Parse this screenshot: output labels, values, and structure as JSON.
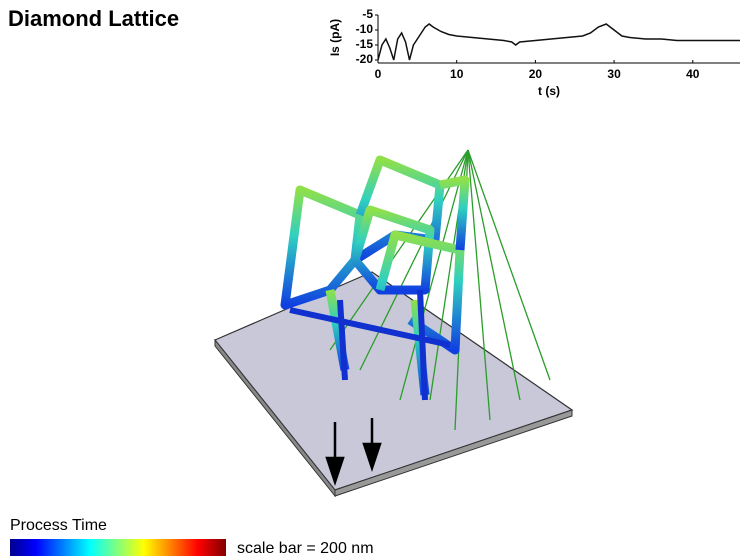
{
  "title": "Diamond Lattice",
  "colorbar_label": "Process Time",
  "scale_bar": "scale bar = 200 nm",
  "chart_data": {
    "type": "line",
    "xlabel": "t (s)",
    "ylabel": "Is (pA)",
    "x": [
      0,
      0.5,
      1,
      1.5,
      2,
      2.5,
      3,
      3.5,
      4,
      4.5,
      5,
      5.5,
      6,
      6.5,
      7,
      8,
      9,
      10,
      12,
      14,
      16,
      17,
      17.5,
      18,
      20,
      22,
      24,
      26,
      27,
      28,
      29,
      30,
      31,
      32,
      34,
      36,
      38,
      40,
      42,
      44,
      46
    ],
    "series": [
      {
        "color": "#111111",
        "values": [
          -20,
          -15,
          -13,
          -16,
          -20,
          -13,
          -11,
          -14,
          -20,
          -15,
          -13,
          -11,
          -9,
          -8,
          -9,
          -10.5,
          -11.5,
          -12,
          -12.5,
          -13,
          -13.5,
          -14,
          -15,
          -14,
          -13.5,
          -13,
          -12.5,
          -12,
          -11,
          -9,
          -8,
          -10,
          -12,
          -12.5,
          -13,
          -13,
          -13.5,
          -13.5,
          -13.5,
          -13.5,
          -13.5
        ]
      }
    ],
    "xlim": [
      0,
      46
    ],
    "ylim": [
      -20,
      -5
    ],
    "xticks": [
      0,
      10,
      20,
      30,
      40
    ],
    "yticks": [
      -5,
      -10,
      -15,
      -20
    ]
  }
}
